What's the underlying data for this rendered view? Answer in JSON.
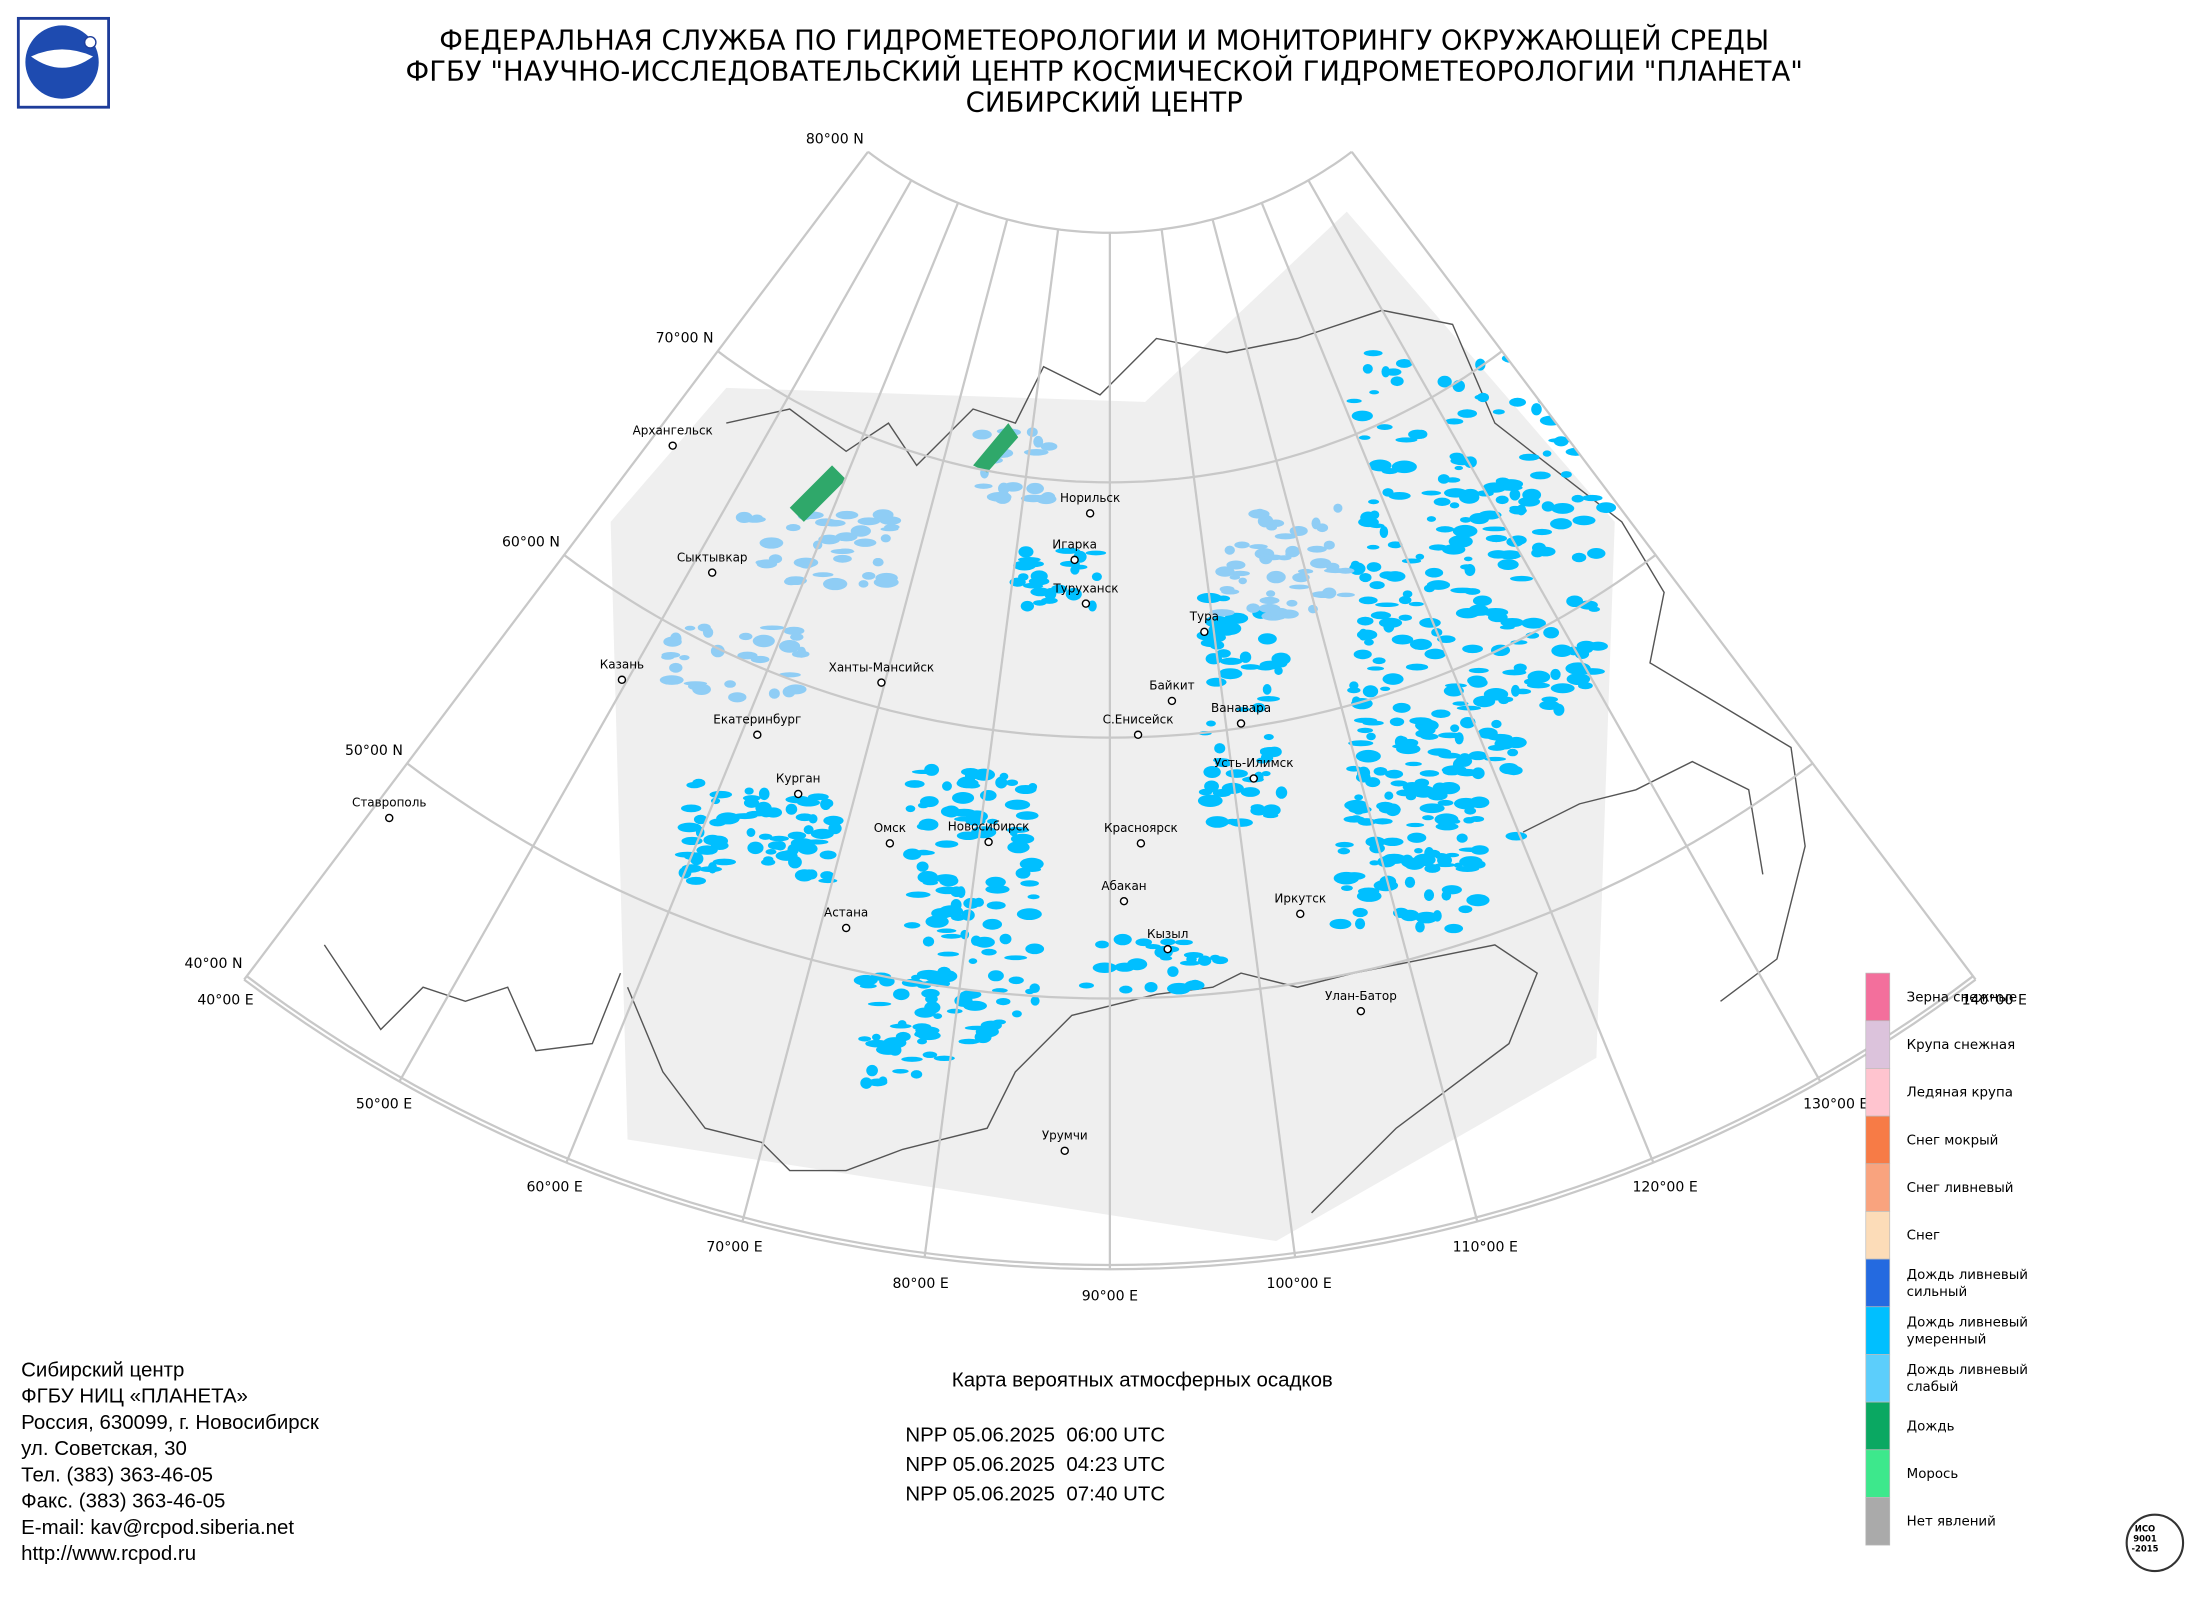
{
  "header": {
    "lines": [
      "ФЕДЕРАЛЬНАЯ СЛУЖБА ПО ГИДРОМЕТЕОРОЛОГИИ И МОНИТОРИНГУ ОКРУЖАЮЩЕЙ СРЕДЫ",
      "ФГБУ \"НАУЧНО-ИССЛЕДОВАТЕЛЬСКИЙ ЦЕНТР КОСМИЧЕСКОЙ ГИДРОМЕТЕОРОЛОГИИ \"ПЛАНЕТА\"",
      "СИБИРСКИЙ ЦЕНТР"
    ]
  },
  "map": {
    "latitude_labels": [
      "80°00 N",
      "70°00 N",
      "60°00 N",
      "50°00 N",
      "40°00 N"
    ],
    "longitude_labels": [
      "40°00 E",
      "50°00 E",
      "60°00 E",
      "70°00 E",
      "80°00 E",
      "90°00 E",
      "100°00 E",
      "110°00 E",
      "120°00 E",
      "130°00 E",
      "140°00 E"
    ],
    "cities": [
      "Архангельск",
      "Сыктывкар",
      "Казань",
      "Екатеринбург",
      "Курган",
      "Ханты-Мансийск",
      "Омск",
      "Новосибирск",
      "Астана",
      "Ставрополь",
      "Норильск",
      "Игарка",
      "Туруханск",
      "Тура",
      "Байкит",
      "Ванавара",
      "С.Енисейск",
      "Усть-Илимск",
      "Красноярск",
      "Абакан",
      "Кызыл",
      "Иркутск",
      "Улан-Батор",
      "Урумчи"
    ]
  },
  "legend": {
    "items": [
      {
        "label": [
          "Зерна снежные"
        ],
        "color": "#f36f9c"
      },
      {
        "label": [
          "Крупа снежная"
        ],
        "color": "#dcc3dc"
      },
      {
        "label": [
          "Ледяная крупа"
        ],
        "color": "#ffc4cf"
      },
      {
        "label": [
          "Снег мокрый"
        ],
        "color": "#f77b46"
      },
      {
        "label": [
          "Снег ливневый"
        ],
        "color": "#f9a37e"
      },
      {
        "label": [
          "Снег"
        ],
        "color": "#fcdcb8"
      },
      {
        "label": [
          "Дождь ливневый",
          "сильный"
        ],
        "color": "#246ae0"
      },
      {
        "label": [
          "Дождь ливневый",
          "умеренный"
        ],
        "color": "#00bfff"
      },
      {
        "label": [
          "Дождь ливневый",
          "слабый"
        ],
        "color": "#5ccefb"
      },
      {
        "label": [
          "Дождь"
        ],
        "color": "#0aa862"
      },
      {
        "label": [
          "Морось"
        ],
        "color": "#3de88c"
      },
      {
        "label": [
          "Нет явлений"
        ],
        "color": "#aaaaaa"
      }
    ]
  },
  "footer": {
    "contacts": [
      "Сибирский центр",
      "ФГБУ НИЦ «ПЛАНЕТА»",
      "Россия, 630099, г. Новосибирск",
      "ул. Советская, 30",
      "Тел. (383) 363-46-05",
      "Факс. (383) 363-46-05",
      "E-mail: kav@rcpod.siberia.net",
      "http://www.rcpod.ru"
    ],
    "map_title": "Карта вероятных атмосферных осадков",
    "passes": [
      "NPP 05.06.2025  06:00 UTC",
      "NPP 05.06.2025  04:23 UTC",
      "NPP 05.06.2025  07:40 UTC"
    ],
    "stamp": [
      "ИСО",
      "9001",
      "-2015"
    ]
  }
}
